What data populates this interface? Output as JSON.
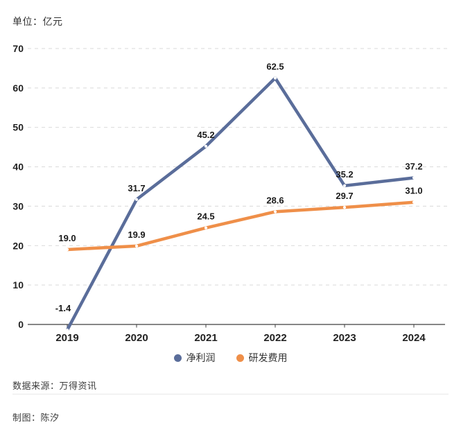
{
  "unit_label": "单位：亿元",
  "colors": {
    "net_profit": "#5a6d9a",
    "rd_expense": "#ef8f49",
    "grid": "#d9d9d9",
    "axis": "#3f3f3f",
    "value_text": "#1a1a1a"
  },
  "chart_data": {
    "type": "line",
    "categories": [
      "2019",
      "2020",
      "2021",
      "2022",
      "2023",
      "2024"
    ],
    "series": [
      {
        "name": "净利润",
        "color": "#5a6d9a",
        "values": [
          -1.4,
          31.7,
          45.2,
          62.5,
          35.2,
          37.2
        ],
        "labels": [
          "-1.4",
          "31.7",
          "45.2",
          "62.5",
          "35.2",
          "37.2"
        ]
      },
      {
        "name": "研发费用",
        "color": "#ef8f49",
        "values": [
          19.0,
          19.9,
          24.5,
          28.6,
          29.7,
          31.0
        ],
        "labels": [
          "19.0",
          "19.9",
          "24.5",
          "28.6",
          "29.7",
          "31.0"
        ]
      }
    ],
    "title": "",
    "xlabel": "",
    "ylabel": "单位：亿元",
    "ylim": [
      0,
      70
    ],
    "ytick_step": 10,
    "yticks": [
      "0",
      "10",
      "20",
      "30",
      "40",
      "50",
      "60",
      "70"
    ],
    "grid": "horizontal-dashed",
    "legend_position": "bottom"
  },
  "footer": {
    "source": "数据来源：万得资讯",
    "author": "制图：陈汐"
  }
}
